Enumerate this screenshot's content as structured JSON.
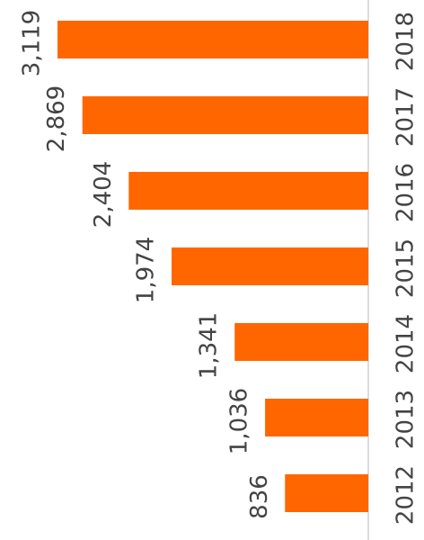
{
  "chart_data": {
    "type": "bar",
    "categories": [
      "2012",
      "2013",
      "2014",
      "2015",
      "2016",
      "2017",
      "2018"
    ],
    "values": [
      836,
      1036,
      1341,
      1974,
      2404,
      2869,
      3119
    ],
    "value_labels": [
      "836",
      "1,036",
      "1,341",
      "1,974",
      "2,404",
      "2,869",
      "3,119"
    ],
    "color": "#ff6600"
  }
}
